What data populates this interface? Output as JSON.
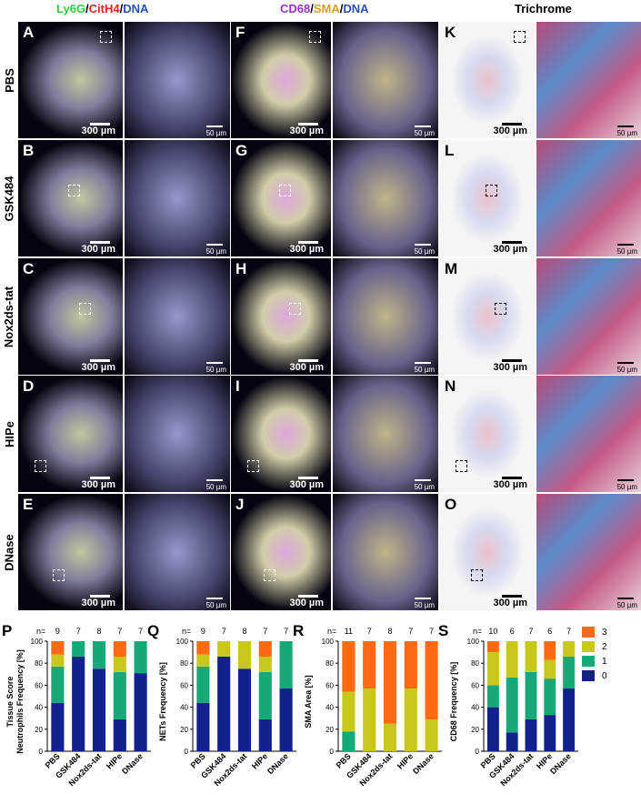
{
  "headers": {
    "fluor1": [
      {
        "text": "Ly6G",
        "color": "#2ecc40"
      },
      {
        "text": "/",
        "color": "#000000"
      },
      {
        "text": "CitH4",
        "color": "#e8231f"
      },
      {
        "text": "/",
        "color": "#000000"
      },
      {
        "text": "DNA",
        "color": "#2a50b4"
      }
    ],
    "fluor2": [
      {
        "text": "CD68",
        "color": "#9b30c8"
      },
      {
        "text": "/",
        "color": "#000000"
      },
      {
        "text": "SMA",
        "color": "#d6a020"
      },
      {
        "text": "/",
        "color": "#000000"
      },
      {
        "text": "DNA",
        "color": "#2a50b4"
      }
    ],
    "trichrome": "Trichrome"
  },
  "rows": [
    {
      "label": "PBS",
      "letters": [
        "A",
        "F",
        "K"
      ]
    },
    {
      "label": "GSK484",
      "letters": [
        "B",
        "G",
        "L"
      ]
    },
    {
      "label": "Nox2ds-tat",
      "letters": [
        "C",
        "H",
        "M"
      ]
    },
    {
      "label": "HIPe",
      "letters": [
        "D",
        "I",
        "N"
      ]
    },
    {
      "label": "DNase",
      "letters": [
        "E",
        "J",
        "O"
      ]
    }
  ],
  "scale": {
    "large": "300 µm",
    "zoom": "50 µm"
  },
  "groups": [
    "PBS",
    "GSK484",
    "Nox2ds-tat",
    "HIPe",
    "DNase"
  ],
  "colors": {
    "s0": "#13218e",
    "s1": "#16a878",
    "s2": "#c8c81c",
    "s3": "#ff6a12"
  },
  "legend": [
    "3",
    "2",
    "1",
    "0"
  ],
  "chart_data": [
    {
      "type": "bar",
      "stacked": true,
      "panel": "P",
      "ylabel": "Tissue Score\nNeutrophils Frequency [%]",
      "ylim": [
        0,
        100
      ],
      "yticks": [
        0,
        20,
        40,
        60,
        80,
        100
      ],
      "categories": [
        "PBS",
        "GSK484",
        "Nox2ds-tat",
        "HIPe",
        "DNase"
      ],
      "n_label": "n=",
      "n": [
        "9",
        "7",
        "8",
        "7",
        "7"
      ],
      "series": [
        {
          "name": "0",
          "values": [
            44,
            86,
            75,
            29,
            71
          ]
        },
        {
          "name": "1",
          "values": [
            33,
            14,
            25,
            43,
            29
          ]
        },
        {
          "name": "2",
          "values": [
            11,
            0,
            0,
            14,
            0
          ]
        },
        {
          "name": "3",
          "values": [
            12,
            0,
            0,
            14,
            0
          ]
        }
      ]
    },
    {
      "type": "bar",
      "stacked": true,
      "panel": "Q",
      "ylabel": "NETs Frequency [%]",
      "ylim": [
        0,
        100
      ],
      "yticks": [
        0,
        20,
        40,
        60,
        80,
        100
      ],
      "categories": [
        "PBS",
        "GSK484",
        "Nox2ds-tat",
        "HIPe",
        "DNase"
      ],
      "n_label": "n=",
      "n": [
        "9",
        "7",
        "8",
        "7",
        "7"
      ],
      "series": [
        {
          "name": "0",
          "values": [
            44,
            86,
            75,
            29,
            57
          ]
        },
        {
          "name": "1",
          "values": [
            33,
            0,
            0,
            43,
            43
          ]
        },
        {
          "name": "2",
          "values": [
            11,
            14,
            25,
            14,
            0
          ]
        },
        {
          "name": "3",
          "values": [
            12,
            0,
            0,
            14,
            0
          ]
        }
      ]
    },
    {
      "type": "bar",
      "stacked": true,
      "panel": "R",
      "ylabel": "SMA Area [%]",
      "ylim": [
        0,
        100
      ],
      "yticks": [
        0,
        20,
        40,
        60,
        80,
        100
      ],
      "categories": [
        "PBS",
        "GSK484",
        "Nox2ds-tat",
        "HIPe",
        "DNase"
      ],
      "n_label": "n=",
      "n": [
        "11",
        "7",
        "8",
        "7",
        "7"
      ],
      "series": [
        {
          "name": "0",
          "values": [
            0,
            0,
            0,
            0,
            0
          ]
        },
        {
          "name": "1",
          "values": [
            18,
            0,
            0,
            0,
            0
          ]
        },
        {
          "name": "2",
          "values": [
            36,
            57,
            25,
            57,
            29
          ]
        },
        {
          "name": "3",
          "values": [
            46,
            43,
            75,
            43,
            71
          ]
        }
      ]
    },
    {
      "type": "bar",
      "stacked": true,
      "panel": "S",
      "ylabel": "CD68 Frequency [%]",
      "ylim": [
        0,
        100
      ],
      "yticks": [
        0,
        20,
        40,
        60,
        80,
        100
      ],
      "categories": [
        "PBS",
        "GSK484",
        "Nox2ds-tat",
        "HIPe",
        "DNase"
      ],
      "n_label": "n=",
      "n": [
        "10",
        "6",
        "7",
        "6",
        "7"
      ],
      "series": [
        {
          "name": "0",
          "values": [
            40,
            17,
            29,
            33,
            57
          ]
        },
        {
          "name": "1",
          "values": [
            20,
            50,
            43,
            33,
            29
          ]
        },
        {
          "name": "2",
          "values": [
            30,
            33,
            28,
            17,
            14
          ]
        },
        {
          "name": "3",
          "values": [
            10,
            0,
            0,
            17,
            0
          ]
        }
      ]
    }
  ]
}
